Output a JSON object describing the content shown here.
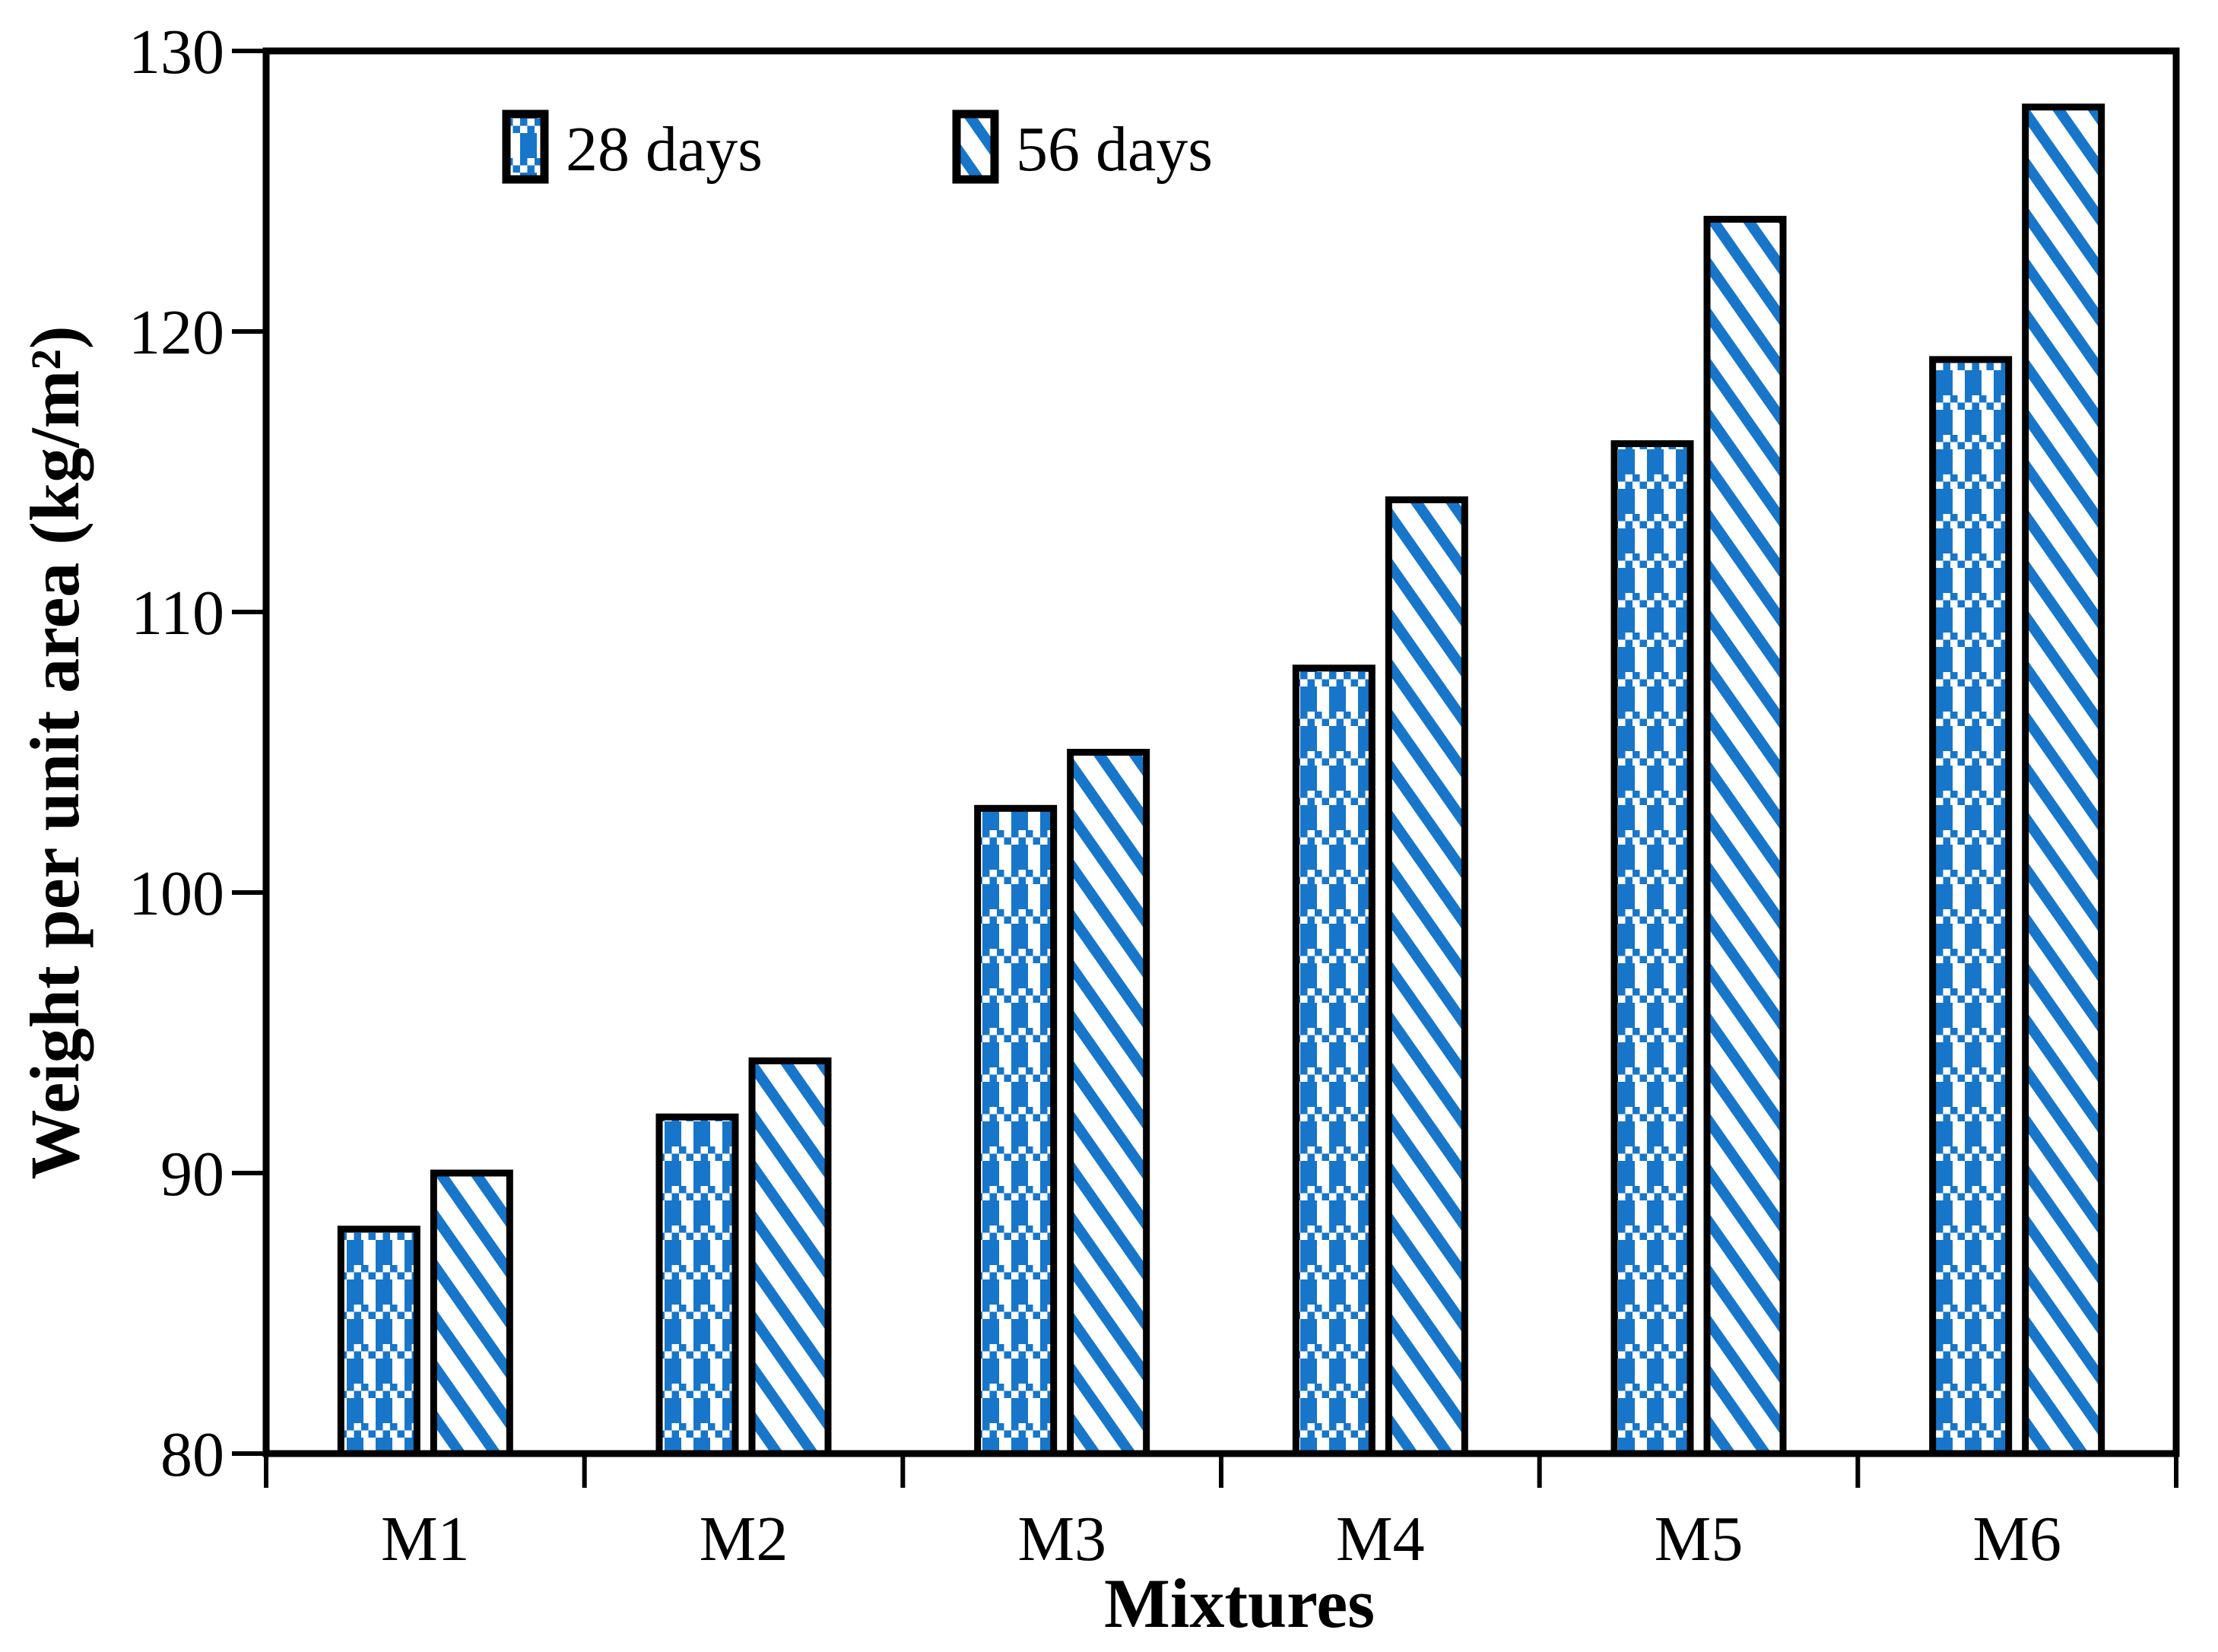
{
  "chart_data": {
    "type": "bar",
    "title": "",
    "categories": [
      "M1",
      "M2",
      "M3",
      "M4",
      "M5",
      "M6"
    ],
    "series": [
      {
        "name": "28 days",
        "pattern": "blue-checker-plaid",
        "values": [
          88,
          92,
          103,
          108,
          116,
          119
        ]
      },
      {
        "name": "56 days",
        "pattern": "blue-diagonal-stripe",
        "values": [
          90,
          94,
          105,
          114,
          124,
          128
        ]
      }
    ],
    "xlabel": "Mixtures",
    "ylabel": "Weight per unit area (kg/m²)",
    "ylim": [
      80,
      130
    ],
    "yticks": [
      80,
      90,
      100,
      110,
      120,
      130
    ],
    "grid": false,
    "legend_position": "top-left-inside",
    "colors": {
      "accent": "#1776C9",
      "bar_border": "#000000",
      "axis": "#000000",
      "background": "#FFFFFF"
    }
  }
}
